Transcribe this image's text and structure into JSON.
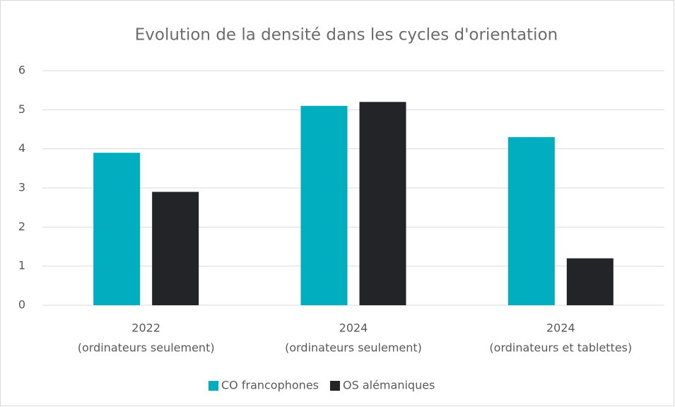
{
  "chart_data": {
    "type": "bar",
    "title": "Evolution de la densité dans les cycles d'orientation",
    "categories": [
      [
        "2022",
        "(ordinateurs seulement)"
      ],
      [
        "2024",
        "(ordinateurs seulement)"
      ],
      [
        "2024",
        "(ordinateurs et tablettes)"
      ]
    ],
    "series": [
      {
        "name": "CO francophones",
        "color": "#00afbf",
        "values": [
          3.9,
          5.1,
          4.3
        ]
      },
      {
        "name": "OS alémaniques",
        "color": "#222428",
        "values": [
          2.9,
          5.2,
          1.2
        ]
      }
    ],
    "ylim": [
      0,
      6
    ],
    "yticks": [
      0,
      1,
      2,
      3,
      4,
      5,
      6
    ],
    "grid": true,
    "legend": "bottom"
  }
}
